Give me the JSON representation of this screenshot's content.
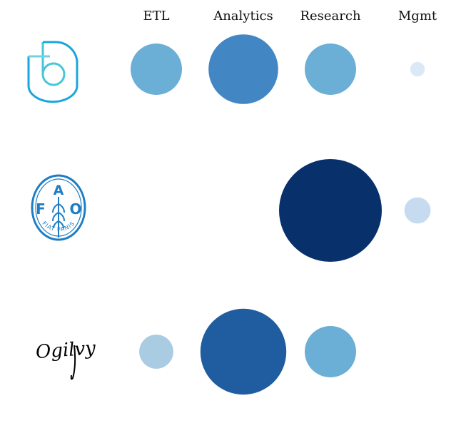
{
  "chart_data": {
    "type": "bubble-matrix",
    "columns": [
      "ETL",
      "Analytics",
      "Research",
      "Mgmt"
    ],
    "rows": [
      {
        "logo": "bluedot-logo",
        "values": [
          0.5,
          0.92,
          0.5,
          0.04
        ]
      },
      {
        "logo": "fao-fiat-panis-logo",
        "logo_text": {
          "left": "F",
          "center": "A",
          "right": "O",
          "motto": "FIAT PANIS"
        },
        "values": [
          0.0,
          0.0,
          2.0,
          0.13
        ]
      },
      {
        "logo": "ogilvy-signature-logo",
        "logo_text": {
          "wordmark": "Ogilvy"
        },
        "values": [
          0.22,
          1.4,
          0.5,
          0.0
        ]
      }
    ],
    "color_scale": [
      "#dbe9f6",
      "#c6dbef",
      "#a9cce3",
      "#6baed6",
      "#4287c3",
      "#1f5da0",
      "#08306b"
    ]
  }
}
